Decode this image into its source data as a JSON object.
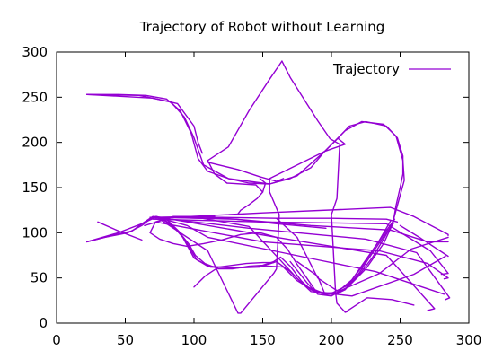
{
  "chart_data": {
    "type": "line",
    "title": "Trajectory of Robot without Learning",
    "xlabel": "",
    "ylabel": "",
    "xlim": [
      0,
      300
    ],
    "ylim": [
      0,
      300
    ],
    "xticks": [
      0,
      50,
      100,
      150,
      200,
      250,
      300
    ],
    "yticks": [
      0,
      50,
      100,
      150,
      200,
      250,
      300
    ],
    "grid": false,
    "legend": {
      "position": "top-right"
    },
    "series": [
      {
        "name": "Trajectory",
        "color": "#9400d3",
        "paths": [
          [
            [
              22,
              253
            ],
            [
              45,
              253
            ],
            [
              65,
              252
            ],
            [
              80,
              248
            ],
            [
              90,
              235
            ],
            [
              98,
              210
            ],
            [
              103,
              182
            ],
            [
              110,
              168
            ],
            [
              125,
              160
            ],
            [
              140,
              155
            ],
            [
              155,
              154
            ],
            [
              170,
              160
            ],
            [
              185,
              172
            ],
            [
              195,
              190
            ],
            [
              205,
              205
            ],
            [
              213,
              218
            ],
            [
              225,
              223
            ],
            [
              240,
              218
            ],
            [
              248,
              205
            ],
            [
              252,
              185
            ],
            [
              252,
              165
            ],
            [
              250,
              150
            ],
            [
              247,
              130
            ],
            [
              245,
              112
            ],
            [
              238,
              93
            ],
            [
              230,
              73
            ],
            [
              220,
              53
            ],
            [
              210,
              38
            ],
            [
              205,
              33
            ],
            [
              196,
              32
            ],
            [
              188,
              37
            ],
            [
              182,
              50
            ],
            [
              175,
              65
            ],
            [
              168,
              82
            ],
            [
              160,
              95
            ],
            [
              148,
              100
            ],
            [
              134,
              98
            ],
            [
              120,
              92
            ],
            [
              107,
              88
            ],
            [
              95,
              85
            ],
            [
              85,
              88
            ],
            [
              75,
              93
            ],
            [
              68,
              100
            ],
            [
              72,
              112
            ],
            [
              82,
              117
            ],
            [
              100,
              118
            ],
            [
              115,
              118
            ]
          ],
          [
            [
              22,
              253
            ],
            [
              60,
              252
            ],
            [
              83,
              245
            ],
            [
              93,
              228
            ],
            [
              100,
              205
            ],
            [
              107,
              175
            ],
            [
              125,
              160
            ],
            [
              155,
              154
            ],
            [
              175,
              163
            ],
            [
              195,
              190
            ],
            [
              210,
              213
            ],
            [
              222,
              223
            ],
            [
              238,
              220
            ],
            [
              247,
              207
            ],
            [
              252,
              180
            ],
            [
              253,
              158
            ],
            [
              248,
              130
            ],
            [
              244,
              108
            ],
            [
              238,
              88
            ],
            [
              225,
              60
            ],
            [
              212,
              40
            ],
            [
              200,
              30
            ],
            [
              190,
              32
            ],
            [
              182,
              45
            ],
            [
              170,
              68
            ]
          ],
          [
            [
              22,
              90
            ],
            [
              35,
              95
            ],
            [
              52,
              100
            ],
            [
              62,
              108
            ],
            [
              68,
              115
            ],
            [
              73,
              118
            ],
            [
              80,
              112
            ],
            [
              88,
              103
            ],
            [
              96,
              88
            ],
            [
              101,
              75
            ],
            [
              108,
              66
            ],
            [
              118,
              60
            ],
            [
              128,
              60
            ],
            [
              140,
              63
            ],
            [
              150,
              64
            ],
            [
              158,
              68
            ],
            [
              163,
              73
            ],
            [
              170,
              63
            ],
            [
              178,
              47
            ],
            [
              185,
              37
            ],
            [
              195,
              32
            ],
            [
              203,
              32
            ],
            [
              210,
              37
            ],
            [
              220,
              55
            ],
            [
              230,
              78
            ],
            [
              240,
              100
            ],
            [
              245,
              110
            ]
          ],
          [
            [
              22,
              90
            ],
            [
              40,
              97
            ],
            [
              55,
              102
            ],
            [
              64,
              112
            ],
            [
              70,
              118
            ],
            [
              75,
              117
            ],
            [
              83,
              110
            ],
            [
              93,
              93
            ],
            [
              102,
              70
            ],
            [
              112,
              62
            ],
            [
              130,
              61
            ],
            [
              148,
              62
            ],
            [
              160,
              68
            ],
            [
              170,
              57
            ],
            [
              180,
              42
            ],
            [
              193,
              33
            ],
            [
              204,
              34
            ],
            [
              215,
              48
            ],
            [
              225,
              70
            ],
            [
              238,
              98
            ],
            [
              246,
              115
            ]
          ],
          [
            [
              22,
              90
            ],
            [
              45,
              100
            ],
            [
              62,
              110
            ],
            [
              72,
              117
            ],
            [
              80,
              115
            ],
            [
              90,
              100
            ],
            [
              100,
              72
            ],
            [
              110,
              63
            ],
            [
              130,
              61
            ],
            [
              155,
              63
            ],
            [
              165,
              62
            ],
            [
              175,
              47
            ],
            [
              188,
              35
            ],
            [
              200,
              33
            ],
            [
              212,
              42
            ],
            [
              222,
              62
            ],
            [
              235,
              92
            ],
            [
              243,
              113
            ]
          ],
          [
            [
              100,
              40
            ],
            [
              108,
              52
            ],
            [
              118,
              62
            ],
            [
              128,
              64
            ],
            [
              138,
              66
            ],
            [
              150,
              67
            ],
            [
              158,
              67
            ]
          ],
          [
            [
              68,
              117
            ],
            [
              90,
              117
            ],
            [
              120,
              117
            ],
            [
              160,
              116
            ],
            [
              200,
              116
            ],
            [
              240,
              115
            ],
            [
              248,
              112
            ]
          ],
          [
            [
              77,
              117
            ],
            [
              130,
              115
            ],
            [
              185,
              108
            ],
            [
              243,
              103
            ],
            [
              270,
              90
            ],
            [
              285,
              90
            ]
          ],
          [
            [
              72,
              116
            ],
            [
              150,
              122
            ],
            [
              243,
              128
            ],
            [
              260,
              118
            ],
            [
              285,
              98
            ],
            [
              285,
              97
            ]
          ],
          [
            [
              70,
              115
            ],
            [
              150,
              112
            ],
            [
              240,
              110
            ],
            [
              272,
              80
            ],
            [
              285,
              55
            ],
            [
              280,
              54
            ]
          ],
          [
            [
              72,
              112
            ],
            [
              150,
              90
            ],
            [
              235,
              80
            ],
            [
              270,
              66
            ],
            [
              285,
              50
            ],
            [
              282,
              49
            ]
          ],
          [
            [
              72,
              117
            ],
            [
              140,
              105
            ],
            [
              225,
              93
            ],
            [
              262,
              78
            ],
            [
              286,
              28
            ],
            [
              283,
              26
            ]
          ],
          [
            [
              72,
              118
            ],
            [
              160,
              95
            ],
            [
              240,
              75
            ],
            [
              255,
              50
            ],
            [
              275,
              16
            ],
            [
              270,
              14
            ]
          ],
          [
            [
              72,
              118
            ],
            [
              110,
              80
            ],
            [
              132,
              11
            ],
            [
              134,
              11
            ],
            [
              158,
              55
            ],
            [
              160,
              60
            ],
            [
              162,
              120
            ],
            [
              155,
              145
            ],
            [
              155,
              160
            ],
            [
              195,
              190
            ]
          ],
          [
            [
              73,
              117
            ],
            [
              95,
              108
            ],
            [
              110,
              95
            ],
            [
              190,
              70
            ],
            [
              232,
              57
            ],
            [
              282,
              32
            ]
          ],
          [
            [
              160,
              116
            ],
            [
              175,
              95
            ],
            [
              190,
              50
            ],
            [
              205,
              35
            ],
            [
              235,
              55
            ],
            [
              258,
              82
            ],
            [
              285,
              95
            ]
          ],
          [
            [
              80,
              117
            ],
            [
              106,
              116
            ],
            [
              140,
              107
            ],
            [
              176,
              48
            ],
            [
              185,
              35
            ],
            [
              215,
              30
            ],
            [
              260,
              54
            ],
            [
              283,
              74
            ]
          ],
          [
            [
              110,
              178
            ],
            [
              132,
              170
            ],
            [
              148,
              162
            ],
            [
              160,
              157
            ],
            [
              165,
              160
            ]
          ],
          [
            [
              195,
              190
            ],
            [
              210,
              198
            ],
            [
              205,
              204
            ]
          ],
          [
            [
              148,
              160
            ],
            [
              152,
              155
            ],
            [
              150,
              145
            ],
            [
              146,
              138
            ],
            [
              140,
              131
            ],
            [
              134,
              125
            ],
            [
              132,
              121
            ]
          ],
          [
            [
              70,
              117
            ],
            [
              101,
              118
            ],
            [
              130,
              115
            ],
            [
              160,
              110
            ],
            [
              196,
              105
            ]
          ],
          [
            [
              250,
              108
            ],
            [
              265,
              94
            ],
            [
              283,
              76
            ],
            [
              285,
              74
            ]
          ],
          [
            [
              210,
              12
            ],
            [
              226,
              28
            ],
            [
              244,
              26
            ],
            [
              260,
              20
            ]
          ],
          [
            [
              195,
              33
            ],
            [
              190,
              52
            ],
            [
              175,
              68
            ]
          ],
          [
            [
              62,
              92
            ],
            [
              45,
              102
            ],
            [
              30,
              112
            ]
          ],
          [
            [
              22,
              253
            ],
            [
              70,
              249
            ],
            [
              88,
              243
            ],
            [
              100,
              218
            ],
            [
              103,
              200
            ],
            [
              106,
              188
            ]
          ],
          [
            [
              164,
              290
            ],
            [
              170,
              272
            ],
            [
              182,
              243
            ],
            [
              190,
              224
            ],
            [
              199,
              204
            ],
            [
              206,
              198
            ],
            [
              204,
              138
            ],
            [
              200,
              120
            ],
            [
              203,
              34
            ],
            [
              204,
              22
            ],
            [
              210,
              12
            ],
            [
              212,
              13
            ]
          ],
          [
            [
              164,
              290
            ],
            [
              155,
              270
            ],
            [
              140,
              235
            ],
            [
              125,
              195
            ],
            [
              110,
              180
            ],
            [
              115,
              165
            ],
            [
              124,
              155
            ],
            [
              145,
              153
            ],
            [
              150,
              145
            ]
          ],
          [
            [
              100,
              118
            ],
            [
              93,
              118
            ],
            [
              85,
              118
            ],
            [
              73,
              112
            ],
            [
              64,
              108
            ]
          ]
        ]
      }
    ]
  }
}
